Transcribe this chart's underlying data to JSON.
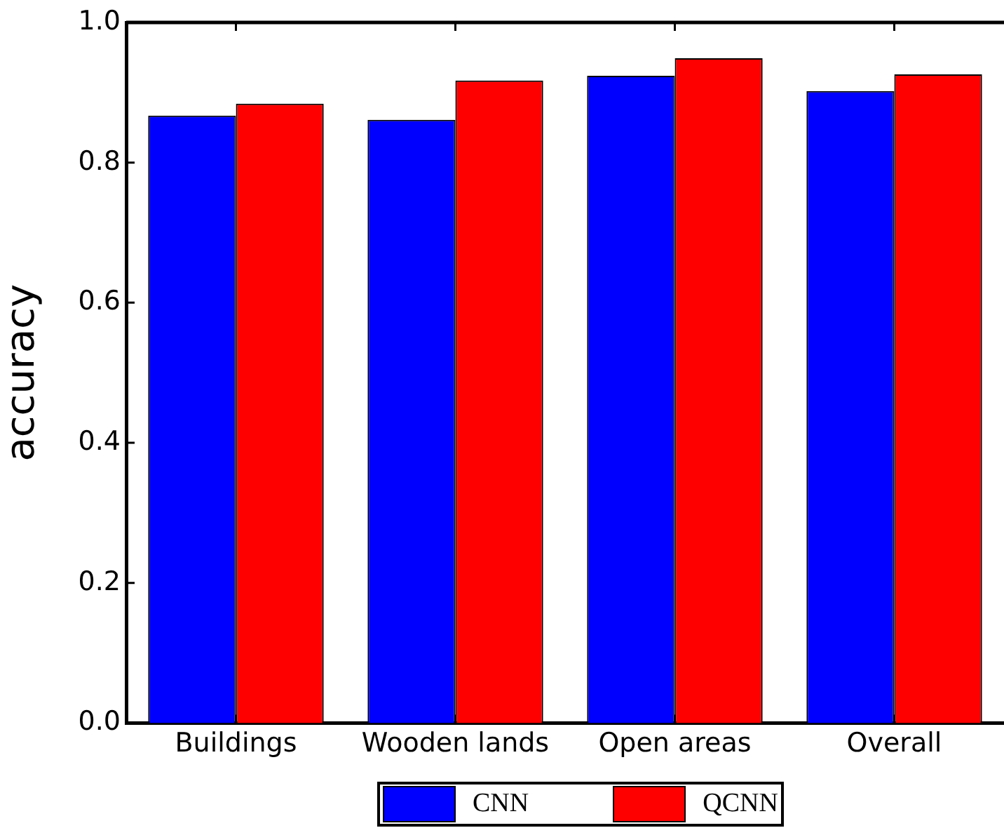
{
  "chart_data": {
    "type": "bar",
    "ylabel": "accuracy",
    "categories": [
      "Buildings",
      "Wooden lands",
      "Open areas",
      "Overall"
    ],
    "series": [
      {
        "name": "CNN",
        "color": "#0000ff",
        "values": [
          0.867,
          0.861,
          0.924,
          0.902
        ]
      },
      {
        "name": "QCNN",
        "color": "#ff0000",
        "values": [
          0.884,
          0.917,
          0.949,
          0.926
        ]
      }
    ],
    "ylim": [
      0,
      1
    ],
    "yticks": [
      {
        "value": 0,
        "label": "0.0"
      },
      0.2,
      0.4,
      0.6,
      0.8,
      {
        "value": 1,
        "label": "1.0"
      }
    ],
    "grid": false,
    "legend": "bottom"
  }
}
